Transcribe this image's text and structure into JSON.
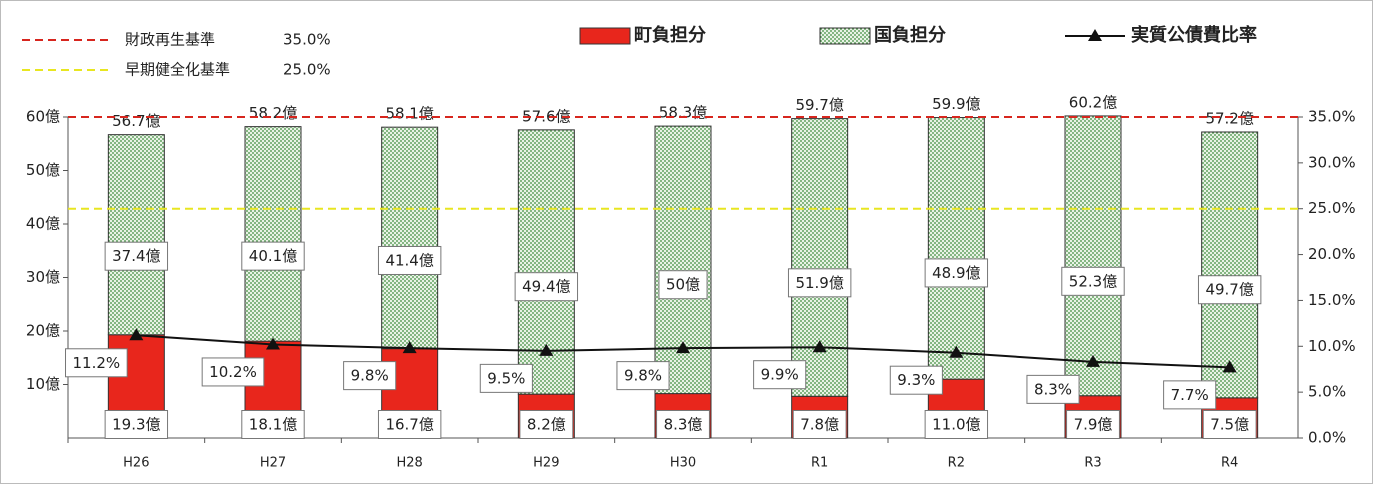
{
  "chart_data": {
    "type": "bar",
    "stacked": true,
    "categories": [
      "H26",
      "H27",
      "H28",
      "H29",
      "H30",
      "R1",
      "R2",
      "R3",
      "R4"
    ],
    "series": [
      {
        "name": "町負担分",
        "color": "#e8261c",
        "values": [
          19.3,
          18.1,
          16.7,
          8.2,
          8.3,
          7.8,
          11.0,
          7.9,
          7.5
        ],
        "value_labels": [
          "19.3億",
          "18.1億",
          "16.7億",
          "8.2億",
          "8.3億",
          "7.8億",
          "11.0億",
          "7.9億",
          "7.5億"
        ]
      },
      {
        "name": "国負担分",
        "color": "#3c8a3c",
        "pattern": "dots",
        "values": [
          37.4,
          40.1,
          41.4,
          49.4,
          50,
          51.9,
          48.9,
          52.3,
          49.7
        ],
        "value_labels": [
          "37.4億",
          "40.1億",
          "41.4億",
          "49.4億",
          "50億",
          "51.9億",
          "48.9億",
          "52.3億",
          "49.7億"
        ]
      },
      {
        "name": "実質公債費比率",
        "type": "line",
        "axis": "y2",
        "color": "#111111",
        "marker": "triangle",
        "values": [
          11.2,
          10.2,
          9.8,
          9.5,
          9.8,
          9.9,
          9.3,
          8.3,
          7.7
        ],
        "value_labels": [
          "11.2%",
          "10.2%",
          "9.8%",
          "9.5%",
          "9.8%",
          "9.9%",
          "9.3%",
          "8.3%",
          "7.7%"
        ]
      }
    ],
    "totals": {
      "values": [
        56.7,
        58.2,
        58.1,
        57.6,
        58.3,
        59.7,
        59.9,
        60.2,
        57.2
      ],
      "value_labels": [
        "56.7億",
        "58.2億",
        "58.1億",
        "57.6億",
        "58.3億",
        "59.7億",
        "59.9億",
        "60.2億",
        "57.2億"
      ]
    },
    "reference_lines": [
      {
        "name": "財政再生基準",
        "value": 35.0,
        "value_label": "35.0%",
        "color": "#d7261e",
        "axis": "y2"
      },
      {
        "name": "早期健全化基準",
        "value": 25.0,
        "value_label": "25.0%",
        "color": "#e8e620",
        "axis": "y2"
      }
    ],
    "ylim": [
      0,
      60
    ],
    "yticks": [
      {
        "value": 10,
        "label": "10億"
      },
      {
        "value": 20,
        "label": "20億"
      },
      {
        "value": 30,
        "label": "30億"
      },
      {
        "value": 40,
        "label": "40億"
      },
      {
        "value": 50,
        "label": "50億"
      },
      {
        "value": 60,
        "label": "60億"
      }
    ],
    "y2lim": [
      0,
      35
    ],
    "y2ticks": [
      {
        "value": 0,
        "label": "0.0%"
      },
      {
        "value": 5,
        "label": "5.0%"
      },
      {
        "value": 10,
        "label": "10.0%"
      },
      {
        "value": 15,
        "label": "15.0%"
      },
      {
        "value": 20,
        "label": "20.0%"
      },
      {
        "value": 25,
        "label": "25.0%"
      },
      {
        "value": 30,
        "label": "30.0%"
      },
      {
        "value": 35,
        "label": "35.0%"
      }
    ]
  }
}
